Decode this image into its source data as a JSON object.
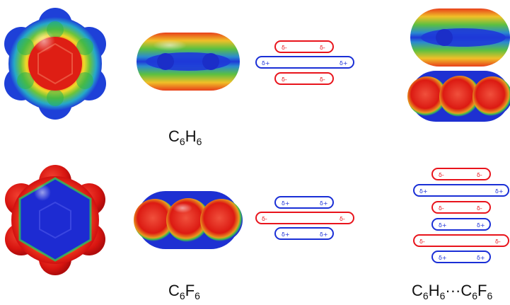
{
  "molecules": {
    "benzene": {
      "el1": "C",
      "n1": "6",
      "el2": "H",
      "n2": "6"
    },
    "hexafluorobenzene": {
      "el1": "C",
      "n1": "6",
      "el2": "F",
      "n2": "6"
    },
    "complex": {
      "el1": "C",
      "n1": "6",
      "el2": "H",
      "n2": "6",
      "sep": "···",
      "el3": "C",
      "n3": "6",
      "el4": "F",
      "n4": "6"
    }
  },
  "charges": {
    "neg": "δ-",
    "pos": "δ+"
  },
  "colors": {
    "negative": "#e8141c",
    "positive": "#1a2fd6",
    "esp_red": "#e01a10",
    "esp_blue": "#1e2bd0",
    "esp_green": "#3cbb3c",
    "esp_yellow": "#f0e020"
  }
}
